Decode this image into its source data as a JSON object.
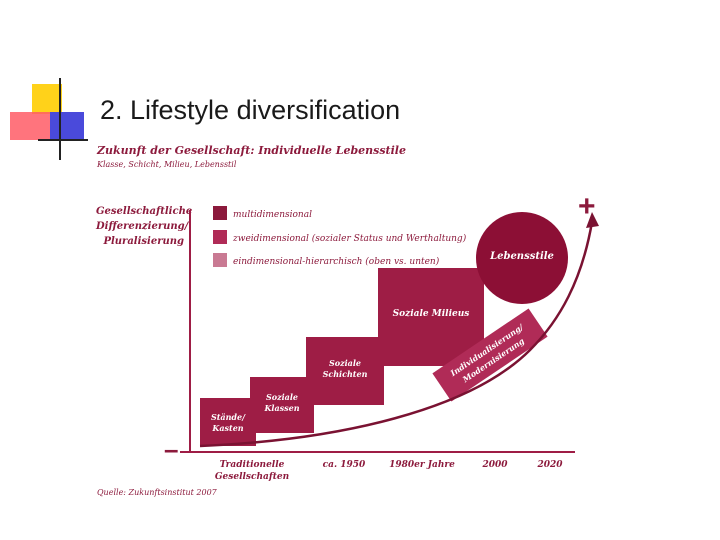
{
  "slide": {
    "title": "2. Lifestyle diversification"
  },
  "figure": {
    "heading": "Zukunft der Gesellschaft: Individuelle Lebensstile",
    "subheading": "Klasse, Schicht, Milieu, Lebensstil",
    "y_axis_label": "Gesellschaftliche Differenzierung/ Pluralisierung",
    "plus_sign": "+",
    "minus_sign": "–",
    "source": "Quelle: Zukunftsinstitut 2007",
    "legend": [
      {
        "label": "multidimensional",
        "color": "#8c1a3c"
      },
      {
        "label": "zweidimensional (sozialer Status und Werthaltung)",
        "color": "#b02b57"
      },
      {
        "label": "eindimensional-hierarchisch (oben vs. unten)",
        "color": "#c97a93"
      }
    ],
    "stages": [
      {
        "line1": "Stände/",
        "line2": "Kasten",
        "color": "#9e1d45"
      },
      {
        "line1": "Soziale",
        "line2": "Klassen",
        "color": "#9e1d45"
      },
      {
        "line1": "Soziale",
        "line2": "Schichten",
        "color": "#9e1d45"
      },
      {
        "line1": "Soziale Milieus",
        "line2": "",
        "color": "#9e1d45"
      }
    ],
    "circle_label": "Lebensstile",
    "circle_color": "#8c0f35",
    "banner_line1": "Individualisierung/",
    "banner_line2": "Modernisierung",
    "x_ticks": [
      {
        "line1": "Traditionelle",
        "line2": "Gesellschaften"
      },
      {
        "line1": "ca. 1950",
        "line2": ""
      },
      {
        "line1": "1980er Jahre",
        "line2": ""
      },
      {
        "line1": "2000",
        "line2": ""
      },
      {
        "line1": "2020",
        "line2": ""
      }
    ]
  }
}
